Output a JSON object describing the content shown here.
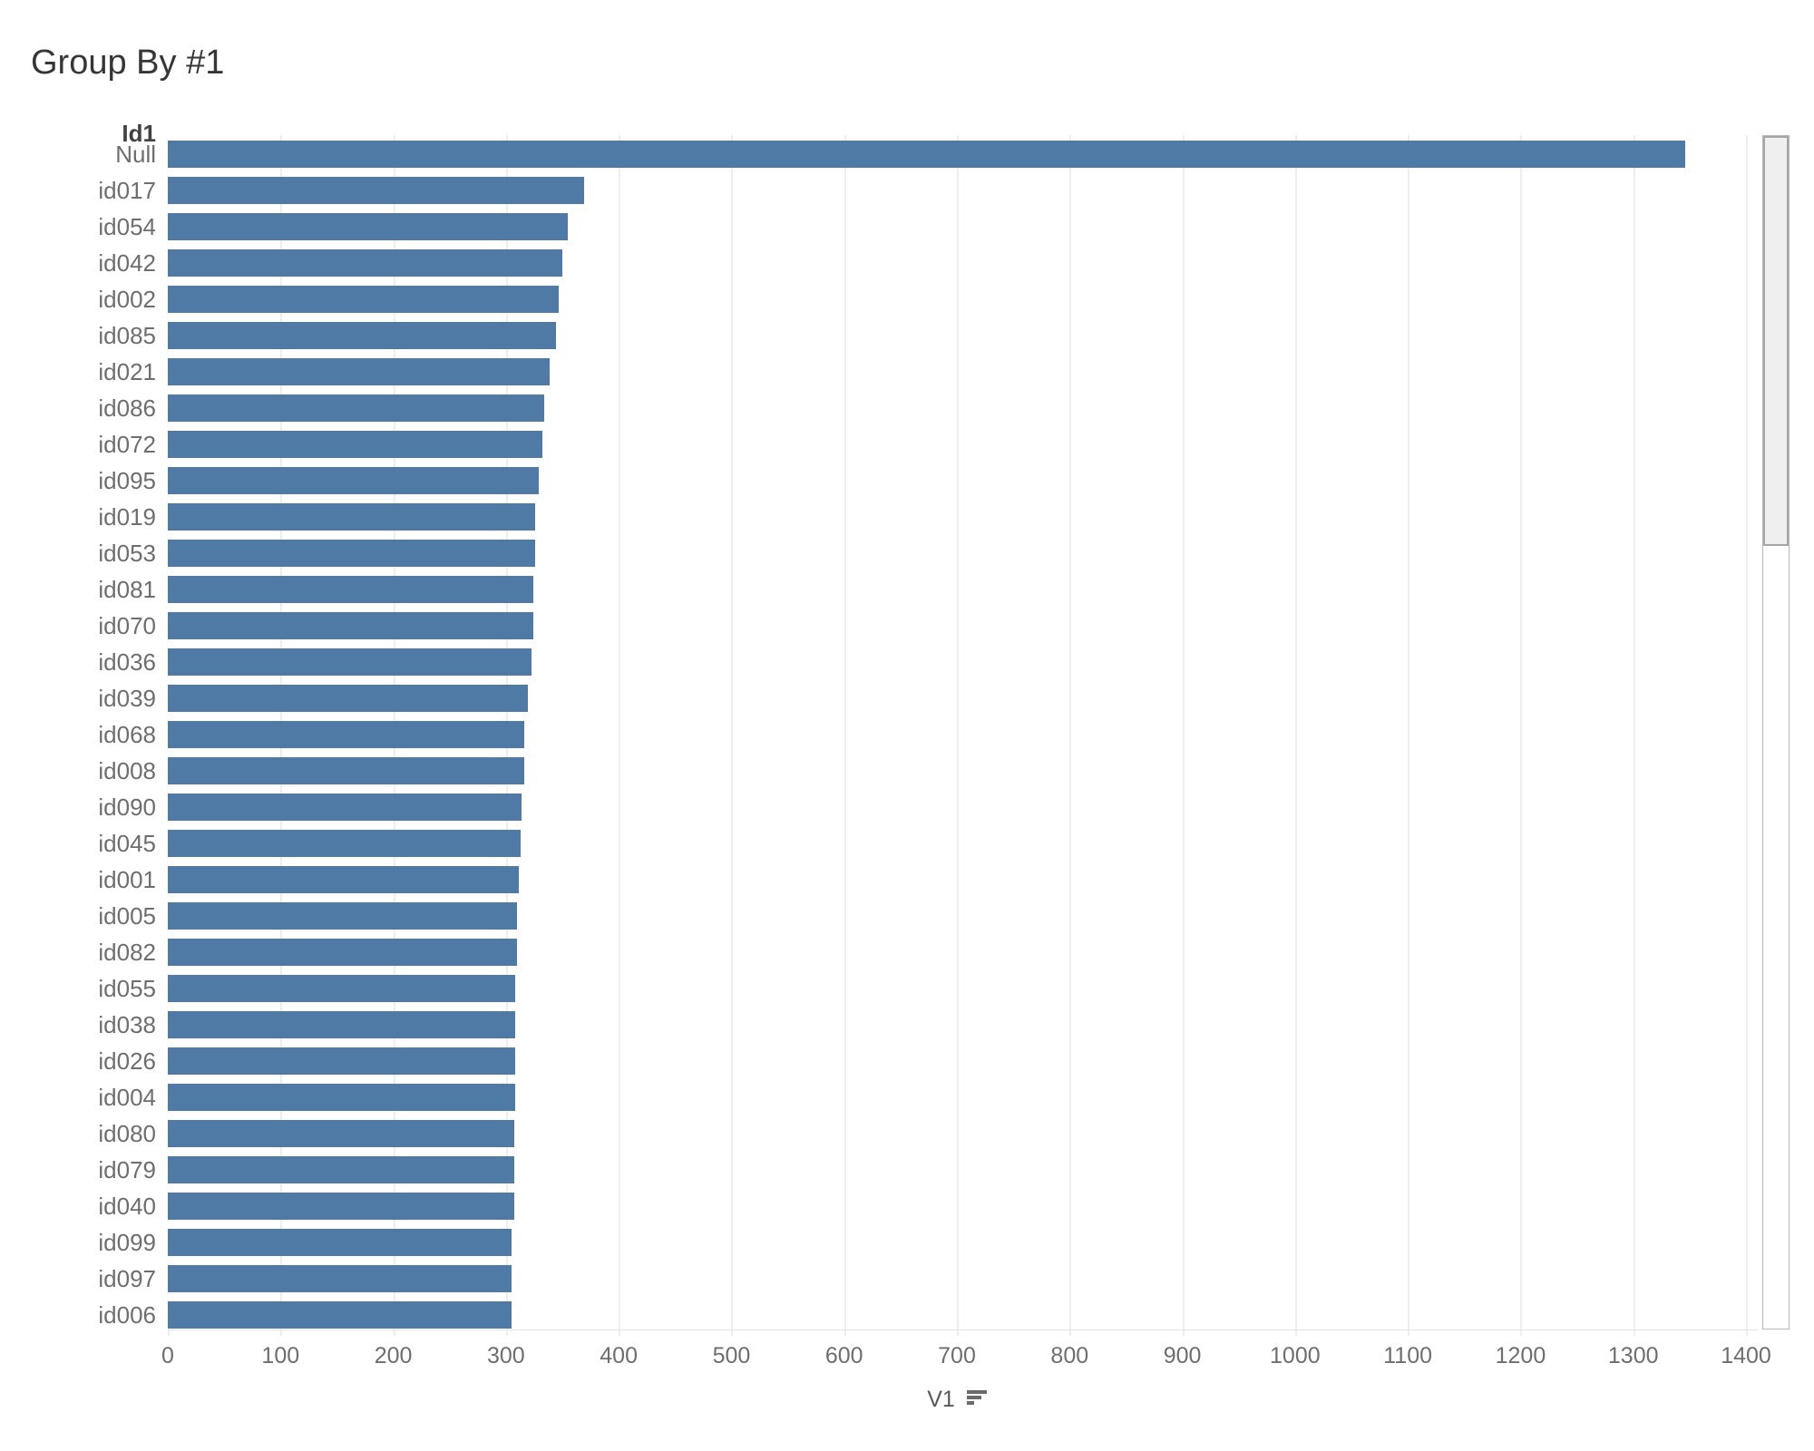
{
  "chart_data": {
    "type": "bar",
    "orientation": "horizontal",
    "title": "Group By #1",
    "ylabel": "Id1",
    "xlabel": "V1",
    "sort_indicator": "descending",
    "xlim": [
      0,
      1400
    ],
    "x_ticks": [
      0,
      100,
      200,
      300,
      400,
      500,
      600,
      700,
      800,
      900,
      1000,
      1100,
      1200,
      1300,
      1400
    ],
    "grid": "vertical-light",
    "legend": "none",
    "categories": [
      "Null",
      "id017",
      "id054",
      "id042",
      "id002",
      "id085",
      "id021",
      "id086",
      "id072",
      "id095",
      "id019",
      "id053",
      "id081",
      "id070",
      "id036",
      "id039",
      "id068",
      "id008",
      "id090",
      "id045",
      "id001",
      "id005",
      "id082",
      "id055",
      "id038",
      "id026",
      "id004",
      "id080",
      "id079",
      "id040",
      "id099",
      "id097",
      "id006"
    ],
    "values": [
      1346,
      369,
      355,
      350,
      347,
      344,
      339,
      334,
      332,
      329,
      326,
      326,
      324,
      324,
      323,
      319,
      316,
      316,
      314,
      313,
      311,
      310,
      310,
      308,
      308,
      308,
      308,
      307,
      307,
      307,
      305,
      305,
      305
    ]
  },
  "colors": {
    "bar_color": "#4f7aa6",
    "title_text": "#363636",
    "header_text": "#424242",
    "label_text": "#6e6e6e",
    "axis_title_text": "#595959",
    "gridline": "#eeeeee",
    "axis_line": "#e4e4e4",
    "sort_icon": "#6a6a6a",
    "scroll_track_border": "#b7b7b7",
    "scroll_thumb_fill": "#efefef",
    "scroll_thumb_border": "#a6a6a6"
  },
  "scrollbar": {
    "orientation": "vertical",
    "thumb_position": "top"
  }
}
